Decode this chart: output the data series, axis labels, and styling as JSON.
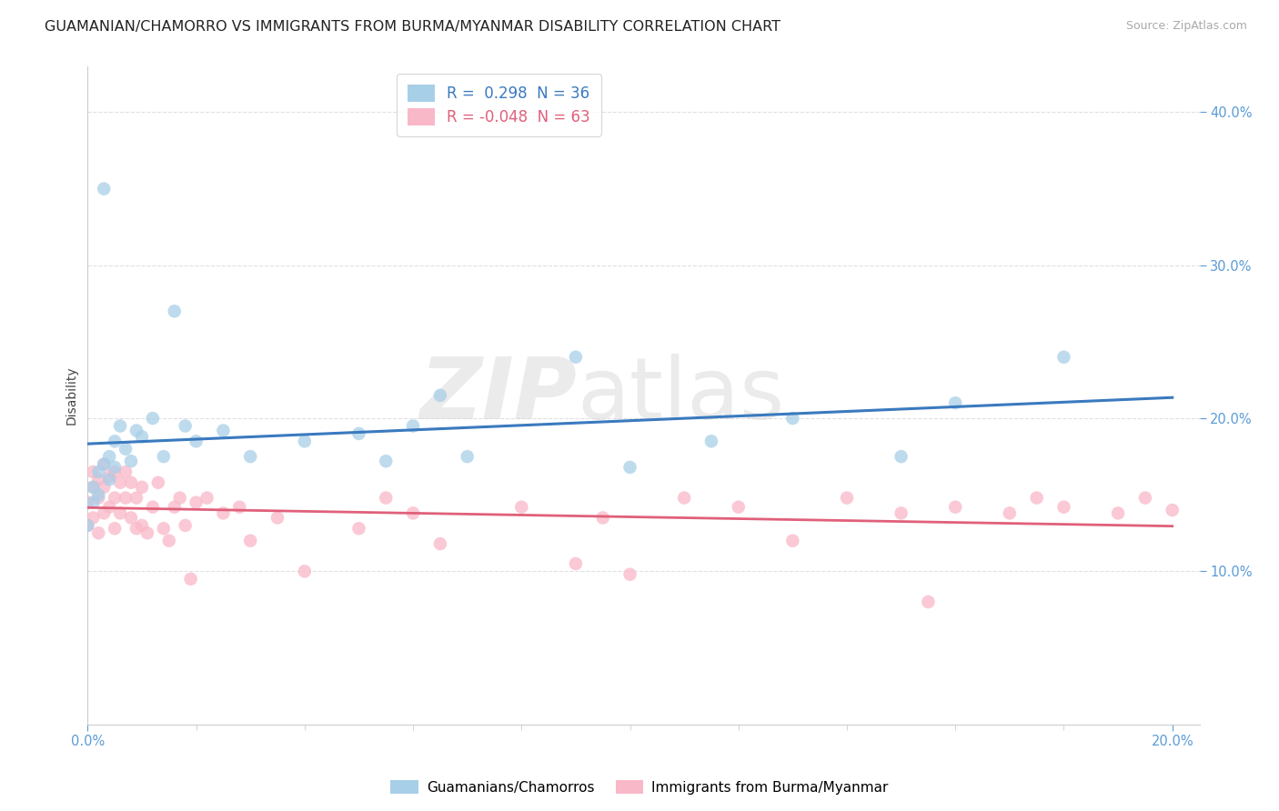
{
  "title": "GUAMANIAN/CHAMORRO VS IMMIGRANTS FROM BURMA/MYANMAR DISABILITY CORRELATION CHART",
  "source": "Source: ZipAtlas.com",
  "ylabel": "Disability",
  "xlim": [
    0.0,
    0.205
  ],
  "ylim": [
    0.0,
    0.43
  ],
  "blue_color": "#a8cfe8",
  "pink_color": "#f9b8c8",
  "blue_line_color": "#3a7abf",
  "pink_line_color": "#e0607a",
  "legend_r1": "R =  0.298",
  "legend_n1": "N = 36",
  "legend_r2": "R = -0.048",
  "legend_n2": "N = 63",
  "guamanian_x": [
    0.0,
    0.001,
    0.001,
    0.002,
    0.002,
    0.003,
    0.003,
    0.004,
    0.004,
    0.005,
    0.005,
    0.006,
    0.007,
    0.008,
    0.009,
    0.01,
    0.012,
    0.014,
    0.016,
    0.018,
    0.02,
    0.025,
    0.03,
    0.04,
    0.05,
    0.055,
    0.06,
    0.065,
    0.07,
    0.09,
    0.1,
    0.115,
    0.13,
    0.15,
    0.16,
    0.18
  ],
  "guamanian_y": [
    0.13,
    0.145,
    0.155,
    0.15,
    0.165,
    0.35,
    0.17,
    0.16,
    0.175,
    0.168,
    0.185,
    0.195,
    0.18,
    0.172,
    0.192,
    0.188,
    0.2,
    0.175,
    0.27,
    0.195,
    0.185,
    0.192,
    0.175,
    0.185,
    0.19,
    0.172,
    0.195,
    0.215,
    0.175,
    0.24,
    0.168,
    0.185,
    0.2,
    0.175,
    0.21,
    0.24
  ],
  "burma_x": [
    0.0,
    0.0,
    0.001,
    0.001,
    0.001,
    0.002,
    0.002,
    0.002,
    0.003,
    0.003,
    0.003,
    0.004,
    0.004,
    0.005,
    0.005,
    0.005,
    0.006,
    0.006,
    0.007,
    0.007,
    0.008,
    0.008,
    0.009,
    0.009,
    0.01,
    0.01,
    0.011,
    0.012,
    0.013,
    0.014,
    0.015,
    0.016,
    0.017,
    0.018,
    0.019,
    0.02,
    0.022,
    0.025,
    0.028,
    0.03,
    0.035,
    0.04,
    0.05,
    0.055,
    0.06,
    0.065,
    0.08,
    0.09,
    0.095,
    0.1,
    0.11,
    0.12,
    0.13,
    0.14,
    0.15,
    0.155,
    0.16,
    0.17,
    0.175,
    0.18,
    0.19,
    0.195,
    0.2
  ],
  "burma_y": [
    0.13,
    0.145,
    0.135,
    0.155,
    0.165,
    0.125,
    0.148,
    0.16,
    0.138,
    0.155,
    0.17,
    0.142,
    0.162,
    0.128,
    0.148,
    0.165,
    0.138,
    0.158,
    0.148,
    0.165,
    0.135,
    0.158,
    0.128,
    0.148,
    0.13,
    0.155,
    0.125,
    0.142,
    0.158,
    0.128,
    0.12,
    0.142,
    0.148,
    0.13,
    0.095,
    0.145,
    0.148,
    0.138,
    0.142,
    0.12,
    0.135,
    0.1,
    0.128,
    0.148,
    0.138,
    0.118,
    0.142,
    0.105,
    0.135,
    0.098,
    0.148,
    0.142,
    0.12,
    0.148,
    0.138,
    0.08,
    0.142,
    0.138,
    0.148,
    0.142,
    0.138,
    0.148,
    0.14
  ],
  "bg_color": "#ffffff",
  "grid_color": "#e0e0e0",
  "tick_color": "#5b9bd5",
  "axis_color": "#cccccc",
  "title_fontsize": 11.5,
  "axis_label_fontsize": 10,
  "tick_fontsize": 10.5
}
